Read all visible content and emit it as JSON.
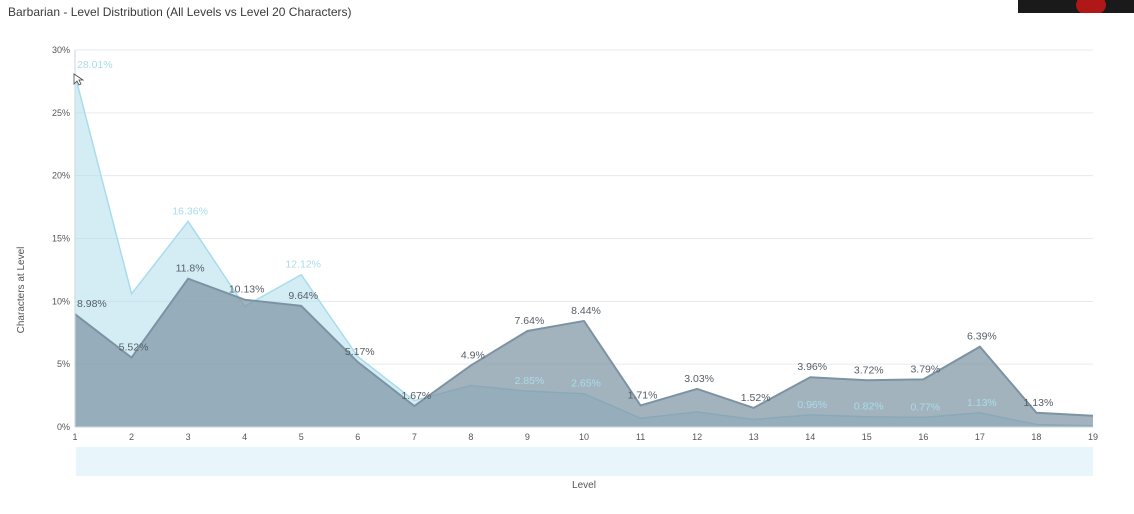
{
  "title": "Barbarian - Level Distribution (All Levels vs Level 20 Characters)",
  "chart_data": {
    "type": "area",
    "title": "Barbarian - Level Distribution (All Levels vs Level 20 Characters)",
    "xlabel": "Level",
    "ylabel": "Characters at Level",
    "x": [
      1,
      2,
      3,
      4,
      5,
      6,
      7,
      8,
      9,
      10,
      11,
      12,
      13,
      14,
      15,
      16,
      17,
      18,
      19
    ],
    "ylim": [
      0,
      30
    ],
    "y_ticks": [
      "0%",
      "5%",
      "10%",
      "15%",
      "20%",
      "25%",
      "30%"
    ],
    "grid": true,
    "series": [
      {
        "values": [
          28.01,
          10.6,
          16.36,
          9.6,
          12.12,
          5.6,
          2.1,
          3.3,
          2.85,
          2.65,
          0.7,
          1.2,
          0.6,
          0.96,
          0.82,
          0.77,
          1.13,
          0.2,
          0.1
        ],
        "labels": [
          "28.01%",
          "",
          "16.36%",
          "",
          "12.12%",
          "",
          "",
          "",
          "2.85%",
          "2.65%",
          "",
          "",
          "",
          "0.96%",
          "0.82%",
          "0.77%",
          "1.13%",
          "",
          ""
        ],
        "color": "#a9dceb",
        "label_color": "#a8dcea"
      },
      {
        "values": [
          8.98,
          5.52,
          11.8,
          10.13,
          9.64,
          5.17,
          1.67,
          4.9,
          7.64,
          8.44,
          1.71,
          3.03,
          1.52,
          3.96,
          3.72,
          3.79,
          6.39,
          1.13,
          0.9
        ],
        "labels": [
          "8.98%",
          "5.52%",
          "11.8%",
          "10.13%",
          "9.64%",
          "5.17%",
          "1.67%",
          "4.9%",
          "7.64%",
          "8.44%",
          "1.71%",
          "3.03%",
          "1.52%",
          "3.96%",
          "3.72%",
          "3.79%",
          "6.39%",
          "1.13%",
          ""
        ],
        "color": "#7c93a3",
        "label_color": "#555e66"
      }
    ]
  }
}
